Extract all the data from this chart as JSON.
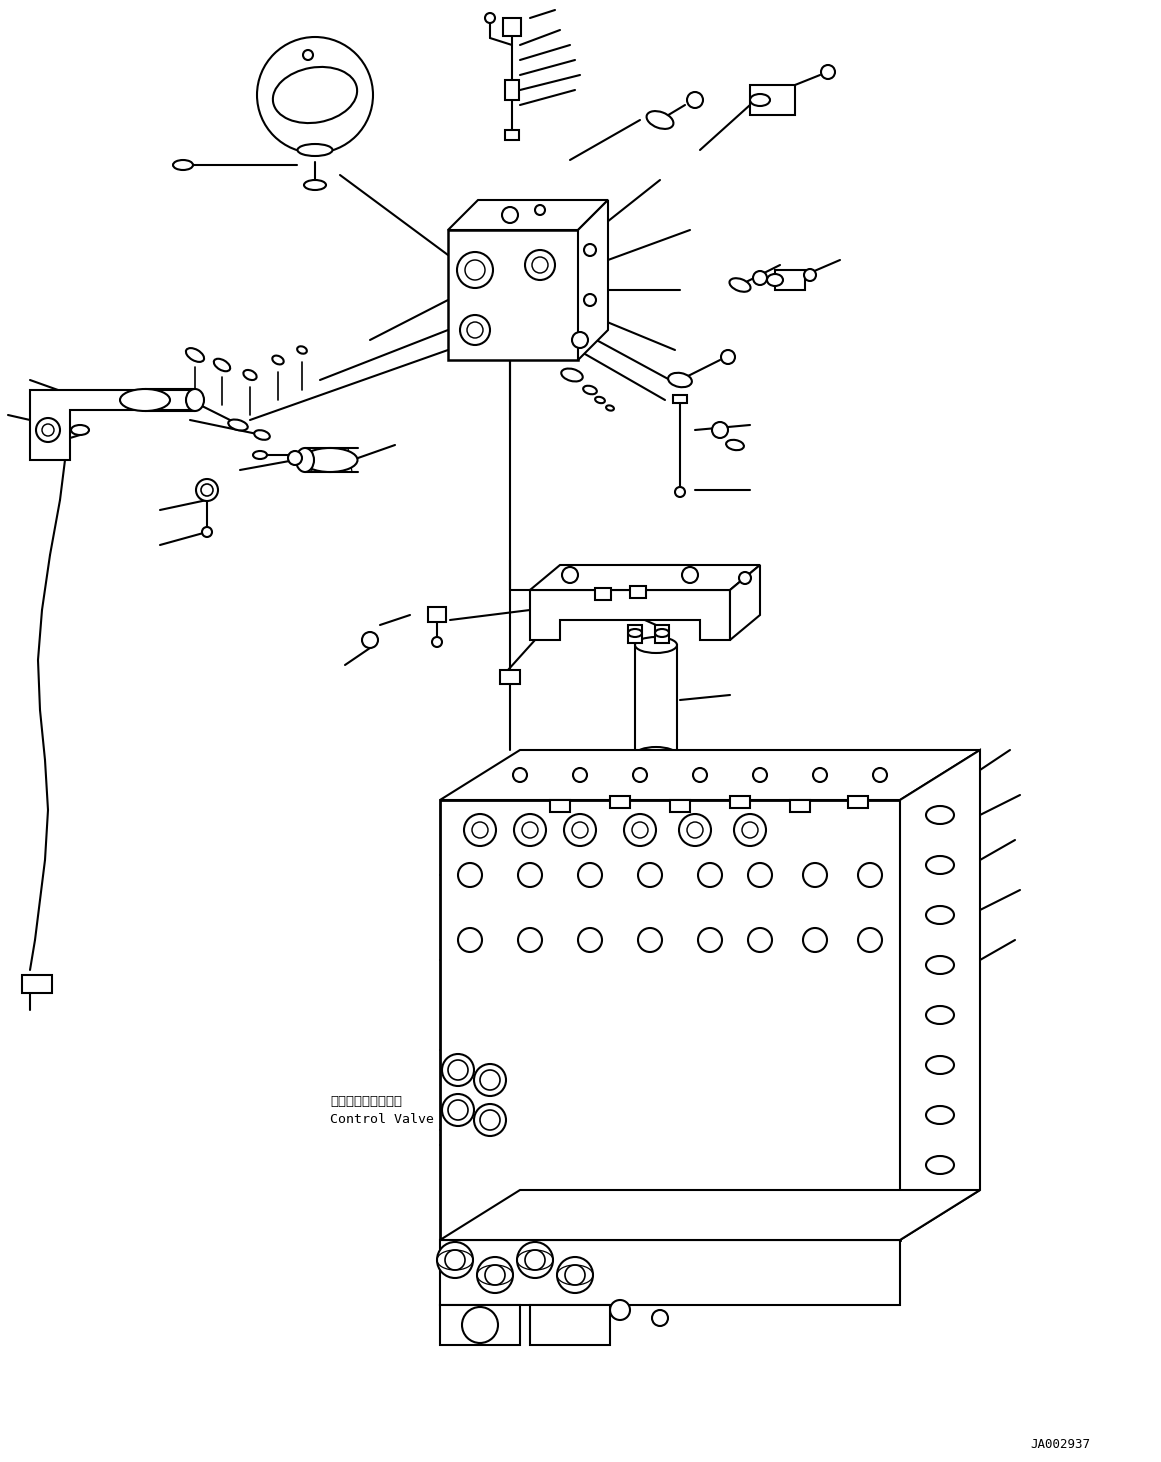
{
  "background_color": "#ffffff",
  "diagram_id": "JA002937",
  "label_control_valve_jp": "コントロールバルブ",
  "label_control_valve_en": "Control Valve",
  "line_color": "#000000",
  "line_width": 1.5,
  "fig_width": 11.61,
  "fig_height": 14.62,
  "dpi": 100
}
